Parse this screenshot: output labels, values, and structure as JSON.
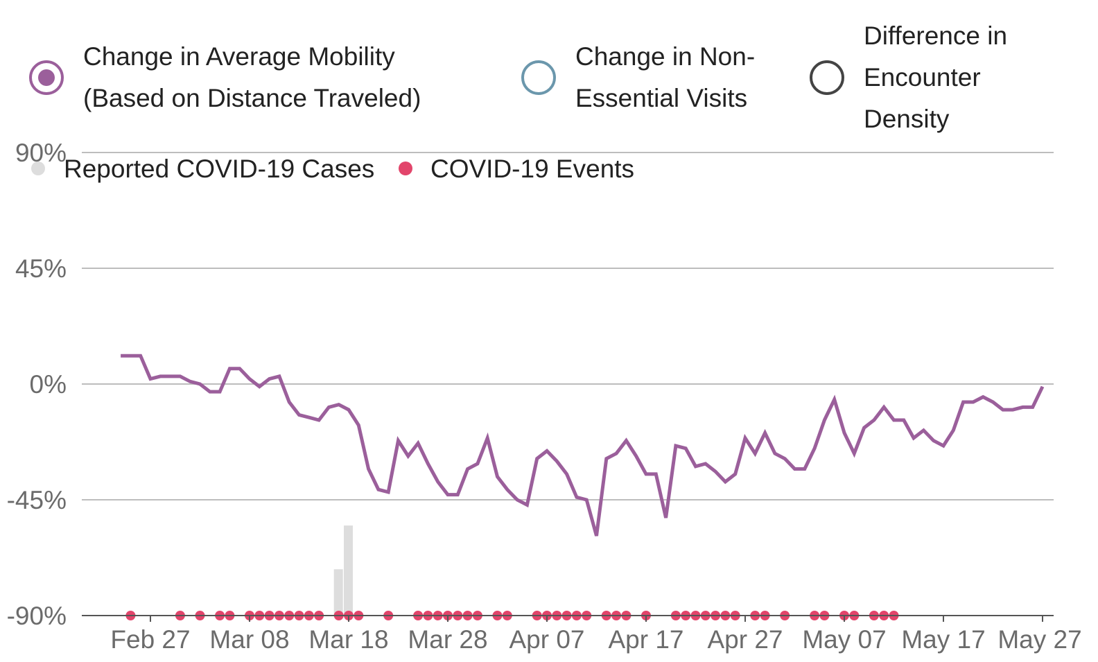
{
  "legend": {
    "items": [
      {
        "label": "Change in Average Mobility\n(Based on Distance Traveled)",
        "color": "#9b5f9b",
        "selected": true
      },
      {
        "label": "Change in Non-\nEssential Visits",
        "color": "#6b97ac",
        "selected": false
      },
      {
        "label": "Difference in\nEncounter\nDensity",
        "color": "#444444",
        "selected": false
      }
    ],
    "secondary": [
      {
        "label": "Reported COVID-19 Cases",
        "color": "#dddddd",
        "icon": "dot-icon"
      },
      {
        "label": "COVID-19 Events",
        "color": "#e2456b",
        "icon": "dot-icon"
      }
    ]
  },
  "chart_data": {
    "type": "line",
    "title": "",
    "xlabel": "",
    "ylabel": "",
    "x_tick_labels": [
      "Feb 27",
      "Mar 08",
      "Mar 18",
      "Mar 28",
      "Apr 07",
      "Apr 17",
      "Apr 27",
      "May 07",
      "May 17",
      "May 27"
    ],
    "y_tick_labels": [
      "90%",
      "45%",
      "0%",
      "-45%",
      "-90%"
    ],
    "y_ticks": [
      90,
      45,
      0,
      -45,
      -90
    ],
    "ylim": [
      -90,
      90
    ],
    "x_start": "Feb 24",
    "x_start_day": -3,
    "x_end_day": 90,
    "series": [
      {
        "name": "Change in Average Mobility (Based on Distance Traveled)",
        "color": "#9b5f9b",
        "start_day": -3,
        "values": [
          11,
          11,
          11,
          2,
          3,
          3,
          3,
          1,
          0,
          -3,
          -3,
          6,
          6,
          2,
          -1,
          2,
          3,
          -7,
          -12,
          -13,
          -14,
          -9,
          -8,
          -10,
          -16,
          -33,
          -41,
          -42,
          -22,
          -28,
          -23,
          -31,
          -38,
          -43,
          -43,
          -33,
          -31,
          -21,
          -36,
          -41,
          -45,
          -47,
          -29,
          -26,
          -30,
          -35,
          -44,
          -45,
          -59,
          -29,
          -27,
          -22,
          -28,
          -35,
          -35,
          -52,
          -24,
          -25,
          -32,
          -31,
          -34,
          -38,
          -35,
          -21,
          -27,
          -19,
          -27,
          -29,
          -33,
          -33,
          -25,
          -14,
          -6,
          -19,
          -27,
          -17,
          -14,
          -9,
          -14,
          -14,
          -21,
          -18,
          -22,
          -24,
          -18,
          -7,
          -7,
          -5,
          -7,
          -10,
          -10,
          -9,
          -9,
          -1
        ]
      }
    ],
    "cases_bars": [
      {
        "day": 19,
        "value": -72
      },
      {
        "day": 20,
        "value": -55
      }
    ],
    "event_days": [
      -2,
      3,
      5,
      7,
      8,
      10,
      11,
      12,
      13,
      14,
      15,
      16,
      17,
      19,
      20,
      21,
      24,
      27,
      28,
      29,
      30,
      31,
      32,
      33,
      35,
      36,
      39,
      40,
      41,
      42,
      43,
      44,
      46,
      47,
      48,
      50,
      53,
      54,
      55,
      56,
      57,
      58,
      59,
      61,
      62,
      64,
      67,
      68,
      70,
      71,
      73,
      74,
      75
    ]
  }
}
